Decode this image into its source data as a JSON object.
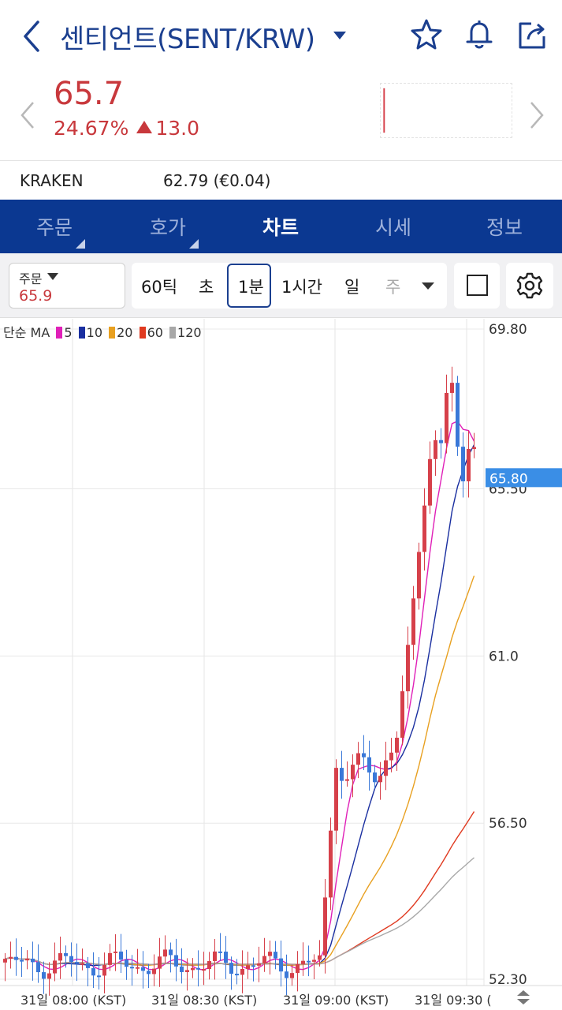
{
  "header": {
    "title": "센티언트(SENT/KRW)",
    "icons": [
      "back-icon",
      "dropdown-caret-icon",
      "star-icon",
      "bell-icon",
      "share-icon"
    ]
  },
  "price": {
    "current": "65.7",
    "change_percent": "24.67%",
    "change_amount": "13.0",
    "color": "#c8383c"
  },
  "exchange": {
    "name": "KRAKEN",
    "value": "62.79 (€0.04)"
  },
  "tabs": [
    {
      "label": "주문",
      "active": false
    },
    {
      "label": "호가",
      "active": false
    },
    {
      "label": "차트",
      "active": true
    },
    {
      "label": "시세",
      "active": false
    },
    {
      "label": "정보",
      "active": false
    }
  ],
  "toolbar": {
    "order_label": "주문",
    "order_value": "65.9",
    "intervals": [
      "60틱",
      "초",
      "1분",
      "1시간",
      "일",
      "주"
    ],
    "selected_interval": "1분"
  },
  "chart_data": {
    "type": "candlestick",
    "legend": {
      "label": "단순 MA",
      "periods": [
        {
          "period": "5",
          "color": "#e020b8"
        },
        {
          "period": "10",
          "color": "#1a2fa0"
        },
        {
          "period": "20",
          "color": "#e8a020"
        },
        {
          "period": "60",
          "color": "#e03a20"
        },
        {
          "period": "120",
          "color": "#a8a8a8"
        }
      ]
    },
    "y_ticks": [
      "69.80",
      "65.50",
      "61.0",
      "56.50",
      "52.30"
    ],
    "x_ticks": [
      "31일 08:00 (KST)",
      "31일 08:30 (KST)",
      "31일 09:00 (KST)",
      "31일 09:30 ("
    ],
    "current_price_label": "65.80",
    "ylim": [
      52.3,
      69.8
    ],
    "up_color": "#d6404a",
    "down_color": "#3a78d8"
  }
}
